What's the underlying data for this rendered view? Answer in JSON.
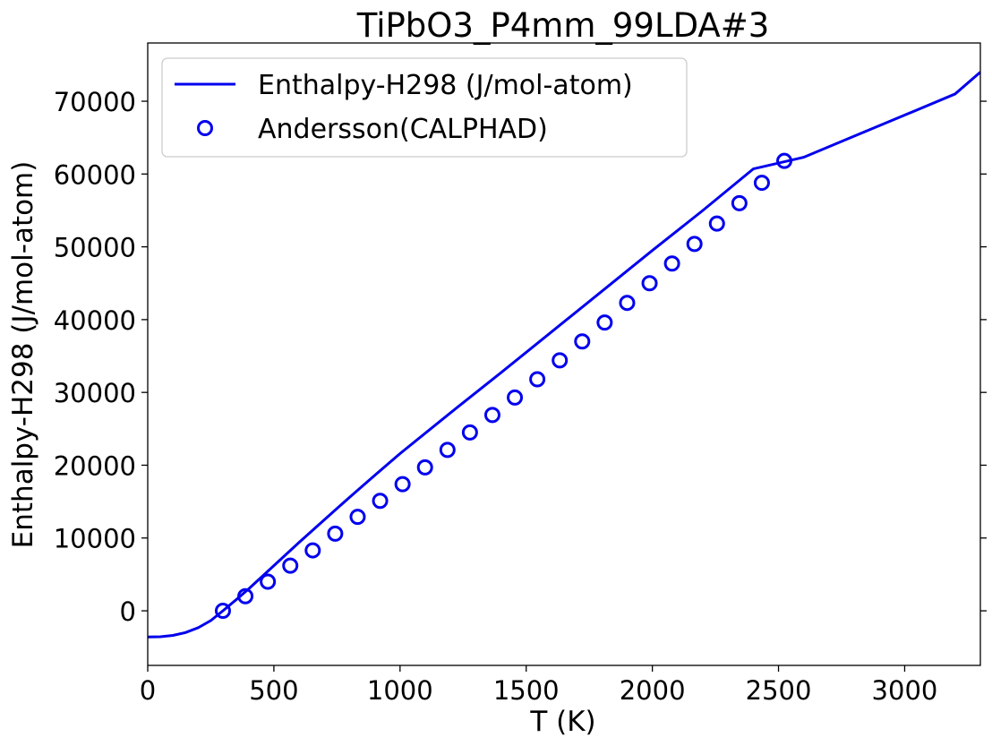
{
  "chart_data": {
    "type": "line",
    "title": "TiPbO3_P4mm_99LDA#3",
    "xlabel": "T (K)",
    "ylabel": "Enthalpy-H298 (J/mol-atom)",
    "xlim": [
      0,
      3300
    ],
    "ylim": [
      -7500,
      78000
    ],
    "xticks": [
      0,
      500,
      1000,
      1500,
      2000,
      2500,
      3000
    ],
    "yticks": [
      0,
      10000,
      20000,
      30000,
      40000,
      50000,
      60000,
      70000
    ],
    "xtick_labels": [
      "0",
      "500",
      "1000",
      "1500",
      "2000",
      "2500",
      "3000"
    ],
    "ytick_labels": [
      "0",
      "10000",
      "20000",
      "30000",
      "40000",
      "50000",
      "60000",
      "70000"
    ],
    "grid": false,
    "legend_position": "top-left",
    "series": [
      {
        "name": "Enthalpy-H298 (J/mol-atom)",
        "style": "line",
        "color": "#0000ee",
        "x": [
          0,
          50,
          100,
          150,
          200,
          250,
          298,
          350,
          400,
          450,
          500,
          600,
          700,
          800,
          900,
          1000,
          1200,
          1400,
          1600,
          1800,
          2000,
          2200,
          2400,
          2600,
          2800,
          3000,
          3200,
          3300
        ],
        "y": [
          -3600,
          -3560,
          -3380,
          -2980,
          -2320,
          -1340,
          0,
          1500,
          3000,
          4600,
          6200,
          9400,
          12500,
          15600,
          18600,
          21600,
          27200,
          32700,
          38300,
          43900,
          49500,
          55000,
          60700,
          62300,
          65200,
          68100,
          71000,
          74000
        ]
      },
      {
        "name": "Andersson(CALPHAD)",
        "style": "marker",
        "color": "#0000ee",
        "x": [
          298,
          387,
          476,
          565,
          654,
          743,
          832,
          921,
          1010,
          1099,
          1188,
          1277,
          1366,
          1455,
          1544,
          1633,
          1722,
          1811,
          1900,
          1989,
          2078,
          2167,
          2256,
          2345,
          2434,
          2523
        ],
        "y": [
          0,
          2000,
          4000,
          6200,
          8300,
          10600,
          12900,
          15100,
          17400,
          19700,
          22100,
          24500,
          26900,
          29300,
          31800,
          34400,
          37000,
          39600,
          42300,
          45000,
          47700,
          50400,
          53200,
          56000,
          58800,
          61800
        ]
      }
    ]
  }
}
